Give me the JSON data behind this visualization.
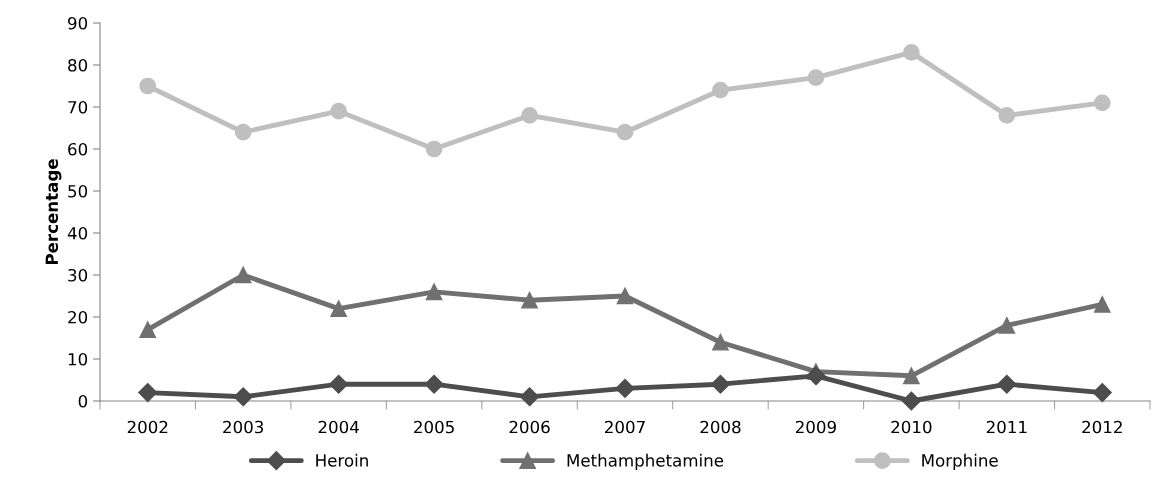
{
  "chart_data": {
    "type": "line",
    "ylabel": "Percentage",
    "categories": [
      "2002",
      "2003",
      "2004",
      "2005",
      "2006",
      "2007",
      "2008",
      "2009",
      "2010",
      "2011",
      "2012"
    ],
    "series": [
      {
        "name": "Heroin",
        "color": "#4d4d4d",
        "marker": "diamond",
        "values": [
          2,
          1,
          4,
          4,
          1,
          3,
          4,
          6,
          0,
          4,
          2
        ]
      },
      {
        "name": "Methamphetamine",
        "color": "#707070",
        "marker": "triangle",
        "values": [
          17,
          30,
          22,
          26,
          24,
          25,
          14,
          7,
          6,
          18,
          23
        ]
      },
      {
        "name": "Morphine",
        "color": "#bfbfbf",
        "marker": "circle",
        "values": [
          75,
          64,
          69,
          60,
          68,
          64,
          74,
          77,
          83,
          68,
          71
        ]
      }
    ],
    "ylim": [
      0,
      90
    ],
    "yticks": [
      0,
      10,
      20,
      30,
      40,
      50,
      60,
      70,
      80,
      90
    ],
    "grid": false,
    "legend": "bottom",
    "line_style": "solid"
  }
}
